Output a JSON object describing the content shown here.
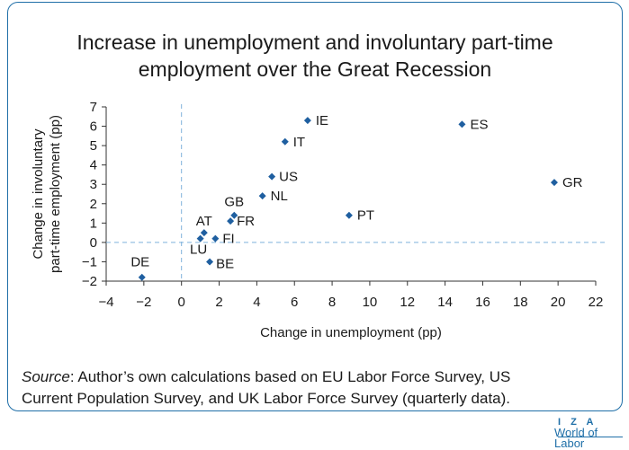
{
  "title_lines": [
    "Increase in unemployment and involuntary part-time",
    "employment over the Great Recession"
  ],
  "source_prefix": "Source",
  "source_text_1": ": Author’s own calculations based on EU Labor Force Survey, US",
  "source_text_2": "Current Population Survey, and UK Labor Force Survey (quarterly data).",
  "logo": {
    "line1": "I Z A",
    "line2": "World of Labor"
  },
  "colors": {
    "marker": "#1f5fa0",
    "frame": "#1f6fa8",
    "reference_lines": "#7fb2dc"
  },
  "chart_data": {
    "type": "scatter",
    "title": "Increase in unemployment and involuntary part-time employment over the Great Recession",
    "xlabel": "Change in unemployment (pp)",
    "ylabel_lines": [
      "Change in involuntary",
      "part-time employment (pp)"
    ],
    "xlim": [
      -4,
      22
    ],
    "ylim": [
      -2,
      7
    ],
    "xticks": [
      -4,
      -2,
      0,
      2,
      4,
      6,
      8,
      10,
      12,
      14,
      16,
      18,
      20,
      22
    ],
    "yticks": [
      -2,
      -1,
      0,
      1,
      2,
      3,
      4,
      5,
      6,
      7
    ],
    "grid": false,
    "reference_lines": {
      "x": 0,
      "y": 0,
      "style": "dashed"
    },
    "points": [
      {
        "label": "IE",
        "x": 6.7,
        "y": 6.3
      },
      {
        "label": "ES",
        "x": 14.9,
        "y": 6.1
      },
      {
        "label": "IT",
        "x": 5.5,
        "y": 5.2
      },
      {
        "label": "US",
        "x": 4.8,
        "y": 3.4
      },
      {
        "label": "GR",
        "x": 19.8,
        "y": 3.1
      },
      {
        "label": "NL",
        "x": 4.3,
        "y": 2.4
      },
      {
        "label": "GB",
        "x": 2.8,
        "y": 1.4
      },
      {
        "label": "FR",
        "x": 2.6,
        "y": 1.1
      },
      {
        "label": "PT",
        "x": 8.9,
        "y": 1.4
      },
      {
        "label": "AT",
        "x": 1.2,
        "y": 0.5
      },
      {
        "label": "FI",
        "x": 1.8,
        "y": 0.2
      },
      {
        "label": "LU",
        "x": 1.0,
        "y": 0.2
      },
      {
        "label": "BE",
        "x": 1.5,
        "y": -1.0
      },
      {
        "label": "DE",
        "x": -2.1,
        "y": -1.8
      }
    ]
  }
}
